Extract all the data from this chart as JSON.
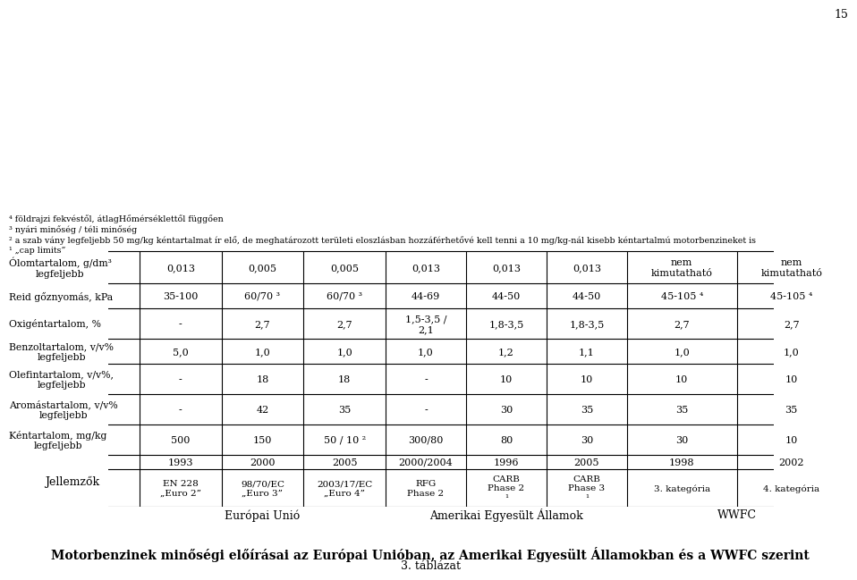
{
  "title_small": "3. táblázat",
  "title_main": "Motorbenzinek minőségi előírásai az Európai Unióban, az Amerikai Egyesült Államokban és a WWFC szerint",
  "col_groups": [
    {
      "label": "Európai Unió",
      "span": 3
    },
    {
      "label": "Amerikai Egyesült Államok",
      "span": 3
    },
    {
      "label": "WWFC",
      "span": 2
    }
  ],
  "col_headers": [
    "EN 228\n„Euro 2”",
    "98/70/EC\n„Euro 3”",
    "2003/17/EC\n„Euro 4”",
    "RFG\nPhase 2",
    "CARB\nPhase 2\n¹",
    "CARB\nPhase 3\n¹",
    "3. kategória",
    "4. kategória"
  ],
  "col_years": [
    "1993",
    "2000",
    "2005",
    "2000/2004",
    "1996",
    "2005",
    "1998",
    "2002"
  ],
  "row_label_col": "Jellemzők",
  "rows": [
    {
      "label": "Kéntartalom, mg/kg\nlegfeljebb",
      "values": [
        "500",
        "150",
        "50 / 10 ²",
        "300/80",
        "80",
        "30",
        "30",
        "10"
      ]
    },
    {
      "label": "Aromástartalom, v/v%\nlegfeljebb",
      "values": [
        "-",
        "42",
        "35",
        "-",
        "30",
        "35",
        "35",
        "35"
      ]
    },
    {
      "label": "Olefintartalom, v/v%,\nlegfeljebb",
      "values": [
        "-",
        "18",
        "18",
        "-",
        "10",
        "10",
        "10",
        "10"
      ]
    },
    {
      "label": "Benzoltartalom, v/v%\nlegfeljebb",
      "values": [
        "5,0",
        "1,0",
        "1,0",
        "1,0",
        "1,2",
        "1,1",
        "1,0",
        "1,0"
      ]
    },
    {
      "label": "Oxigéntartalom, %",
      "values": [
        "-",
        "2,7",
        "2,7",
        "1,5-3,5 /\n2,1",
        "1,8-3,5",
        "1,8-3,5",
        "2,7",
        "2,7"
      ]
    },
    {
      "label": "Reid gőznyomás, kPa",
      "values": [
        "35-100",
        "60/70 ³",
        "60/70 ³",
        "44-69",
        "44-50",
        "44-50",
        "45-105 ⁴",
        "45-105 ⁴"
      ]
    },
    {
      "label": "Ólomtartalom, g/dm³\nlegfeljebb",
      "values": [
        "0,013",
        "0,005",
        "0,005",
        "0,013",
        "0,013",
        "0,013",
        "nem\nkimutatható",
        "nem\nkimutatható"
      ]
    }
  ],
  "footnotes": [
    "¹ „cap limits”",
    "² a szab vány legfeljebb 50 mg/kg kéntartalmat ír elő, de meghatározott területi eloszlásban hozzáférhetővé kell tenni a 10 mg/kg-nál kisebb kéntartalmú motorbenzineket is",
    "³ nyári minőség / téli minőség",
    "⁴ földrajzi fekvéstől, átlagHőmérséklettől függően"
  ],
  "page_number": "15",
  "background_color": "#ffffff",
  "text_color": "#000000",
  "line_color": "#000000"
}
